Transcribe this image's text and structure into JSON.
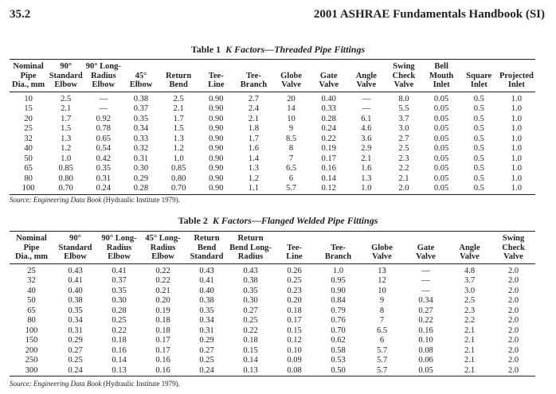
{
  "header": {
    "page_number": "35.2",
    "book_title": "2001 ASHRAE Fundamentals Handbook (SI)"
  },
  "table1": {
    "number": "Table 1",
    "title": "K Factors—Threaded Pipe Fittings",
    "columns": [
      [
        "Nominal",
        "Pipe",
        "Dia., mm"
      ],
      [
        "90°",
        "Standard",
        "Elbow"
      ],
      [
        "90° Long-",
        "Radius",
        "Elbow"
      ],
      [
        "45°",
        "Elbow"
      ],
      [
        "Return",
        "Bend"
      ],
      [
        "Tee-",
        "Line"
      ],
      [
        "Tee-",
        "Branch"
      ],
      [
        "Globe",
        "Valve"
      ],
      [
        "Gate",
        "Valve"
      ],
      [
        "Angle",
        "Valve"
      ],
      [
        "Swing",
        "Check",
        "Valve"
      ],
      [
        "Bell",
        "Mouth",
        "Inlet"
      ],
      [
        "Square",
        "Inlet"
      ],
      [
        "Projected",
        "Inlet"
      ]
    ],
    "rows": [
      [
        "10",
        "2.5",
        "—",
        "0.38",
        "2.5",
        "0.90",
        "2.7",
        "20",
        "0.40",
        "—",
        "8.0",
        "0.05",
        "0.5",
        "1.0"
      ],
      [
        "15",
        "2.1",
        "—",
        "0.37",
        "2.1",
        "0.90",
        "2.4",
        "14",
        "0.33",
        "—",
        "5.5",
        "0.05",
        "0.5",
        "1.0"
      ],
      [
        "20",
        "1.7",
        "0.92",
        "0.35",
        "1.7",
        "0.90",
        "2.1",
        "10",
        "0.28",
        "6.1",
        "3.7",
        "0.05",
        "0.5",
        "1.0"
      ],
      [
        "25",
        "1.5",
        "0.78",
        "0.34",
        "1.5",
        "0.90",
        "1.8",
        "9",
        "0.24",
        "4.6",
        "3.0",
        "0.05",
        "0.5",
        "1.0"
      ],
      [
        "32",
        "1.3",
        "0.65",
        "0.33",
        "1.3",
        "0.90",
        "1.7",
        "8.5",
        "0.22",
        "3.6",
        "2.7",
        "0.05",
        "0.5",
        "1.0"
      ],
      [
        "40",
        "1.2",
        "0.54",
        "0.32",
        "1.2",
        "0.90",
        "1.6",
        "8",
        "0.19",
        "2.9",
        "2.5",
        "0.05",
        "0.5",
        "1.0"
      ],
      [
        "50",
        "1.0",
        "0.42",
        "0.31",
        "1.0",
        "0.90",
        "1.4",
        "7",
        "0.17",
        "2.1",
        "2.3",
        "0.05",
        "0.5",
        "1.0"
      ],
      [
        "65",
        "0.85",
        "0.35",
        "0.30",
        "0.85",
        "0.90",
        "1.3",
        "6.5",
        "0.16",
        "1.6",
        "2.2",
        "0.05",
        "0.5",
        "1.0"
      ],
      [
        "80",
        "0.80",
        "0.31",
        "0.29",
        "0.80",
        "0.90",
        "1.2",
        "6",
        "0.14",
        "1.3",
        "2.1",
        "0.05",
        "0.5",
        "1.0"
      ],
      [
        "100",
        "0.70",
        "0.24",
        "0.28",
        "0.70",
        "0.90",
        "1.1",
        "5.7",
        "0.12",
        "1.0",
        "2.0",
        "0.05",
        "0.5",
        "1.0"
      ]
    ],
    "source_label": "Source:",
    "source_book": "Engineering Data Book",
    "source_rest": "(Hydraulic Institute 1979)."
  },
  "table2": {
    "number": "Table 2",
    "title": "K Factors—Flanged Welded Pipe Fittings",
    "columns": [
      [
        "Nominal",
        "Pipe",
        "Dia., mm"
      ],
      [
        "90°",
        "Standard",
        "Elbow"
      ],
      [
        "90° Long-",
        "Radius",
        "Elbow"
      ],
      [
        "45° Long-",
        "Radius",
        "Elbow"
      ],
      [
        "Return",
        "Bend",
        "Standard"
      ],
      [
        "Return",
        "Bend Long-",
        "Radius"
      ],
      [
        "Tee-",
        "Line"
      ],
      [
        "Tee-",
        "Branch"
      ],
      [
        "Globe",
        "Valve"
      ],
      [
        "Gate",
        "Valve"
      ],
      [
        "Angle",
        "Valve"
      ],
      [
        "Swing",
        "Check",
        "Valve"
      ]
    ],
    "rows": [
      [
        "25",
        "0.43",
        "0.41",
        "0.22",
        "0.43",
        "0.43",
        "0.26",
        "1.0",
        "13",
        "—",
        "4.8",
        "2.0"
      ],
      [
        "32",
        "0.41",
        "0.37",
        "0.22",
        "0.41",
        "0.38",
        "0.25",
        "0.95",
        "12",
        "—",
        "3.7",
        "2.0"
      ],
      [
        "40",
        "0.40",
        "0.35",
        "0.21",
        "0.40",
        "0.35",
        "0.23",
        "0.90",
        "10",
        "—",
        "3.0",
        "2.0"
      ],
      [
        "50",
        "0.38",
        "0.30",
        "0.20",
        "0.38",
        "0.30",
        "0.20",
        "0.84",
        "9",
        "0.34",
        "2.5",
        "2.0"
      ],
      [
        "65",
        "0.35",
        "0.28",
        "0.19",
        "0.35",
        "0.27",
        "0.18",
        "0.79",
        "8",
        "0.27",
        "2.3",
        "2.0"
      ],
      [
        "80",
        "0.34",
        "0.25",
        "0.18",
        "0.34",
        "0.25",
        "0.17",
        "0.76",
        "7",
        "0.22",
        "2.2",
        "2.0"
      ],
      [
        "100",
        "0.31",
        "0.22",
        "0.18",
        "0.31",
        "0.22",
        "0.15",
        "0.70",
        "6.5",
        "0.16",
        "2.1",
        "2.0"
      ],
      [
        "150",
        "0.29",
        "0.18",
        "0.17",
        "0.29",
        "0.18",
        "0.12",
        "0.62",
        "6",
        "0.10",
        "2.1",
        "2.0"
      ],
      [
        "200",
        "0.27",
        "0.16",
        "0.17",
        "0.27",
        "0.15",
        "0.10",
        "0.58",
        "5.7",
        "0.08",
        "2.1",
        "2.0"
      ],
      [
        "250",
        "0.25",
        "0.14",
        "0.16",
        "0.25",
        "0.14",
        "0.09",
        "0.53",
        "5.7",
        "0.06",
        "2.1",
        "2.0"
      ],
      [
        "300",
        "0.24",
        "0.13",
        "0.16",
        "0.24",
        "0.13",
        "0.08",
        "0.50",
        "5.7",
        "0.05",
        "2.1",
        "2.0"
      ]
    ],
    "source_label": "Source:",
    "source_book": "Engineering Data Book",
    "source_rest": "(Hydraulic Institute 1979)."
  }
}
